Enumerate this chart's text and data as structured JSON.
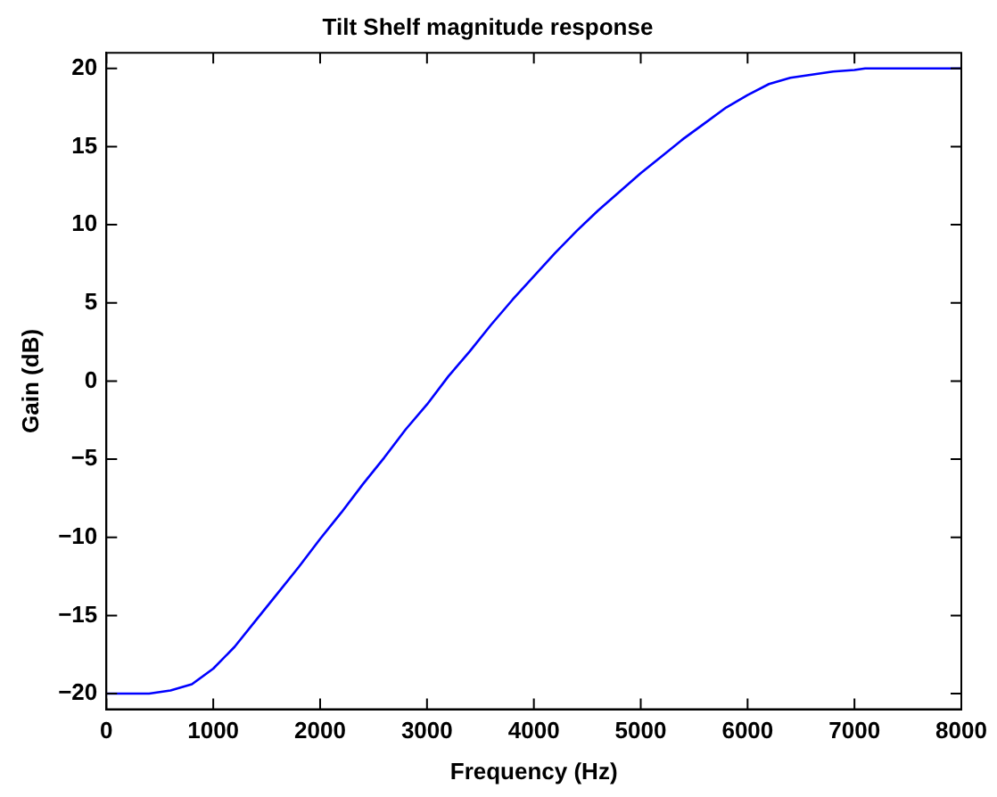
{
  "chart_data": {
    "type": "line",
    "title": "Tilt Shelf magnitude response",
    "xlabel": "Frequency (Hz)",
    "ylabel": "Gain (dB)",
    "x": [
      0,
      200,
      400,
      600,
      800,
      1000,
      1200,
      1400,
      1600,
      1800,
      2000,
      2200,
      2400,
      2600,
      2800,
      3000,
      3200,
      3400,
      3600,
      3800,
      4000,
      4200,
      4400,
      4600,
      4800,
      5000,
      5200,
      5400,
      5600,
      5800,
      6000,
      6200,
      6400,
      6600,
      6800,
      7000,
      7100,
      7500,
      8000
    ],
    "series": [
      {
        "color": "#0000ff",
        "values": [
          -20,
          -20,
          -20,
          -19.8,
          -19.4,
          -18.4,
          -17,
          -15.3,
          -13.6,
          -11.9,
          -10.1,
          -8.4,
          -6.6,
          -4.9,
          -3.1,
          -1.5,
          0.3,
          1.9,
          3.6,
          5.2,
          6.7,
          8.2,
          9.6,
          10.9,
          12.1,
          13.3,
          14.4,
          15.5,
          16.5,
          17.5,
          18.3,
          19,
          19.4,
          19.6,
          19.8,
          19.9,
          20,
          20,
          20
        ]
      }
    ],
    "xlim": [
      0,
      8000
    ],
    "xticks": [
      0,
      1000,
      2000,
      3000,
      4000,
      5000,
      6000,
      7000,
      8000
    ],
    "ylim": [
      -21,
      21
    ],
    "yticks": [
      -20,
      -15,
      -10,
      -5,
      0,
      5,
      10,
      15,
      20
    ],
    "grid": false,
    "legend": false,
    "marker": "none",
    "line_style": "solid"
  }
}
